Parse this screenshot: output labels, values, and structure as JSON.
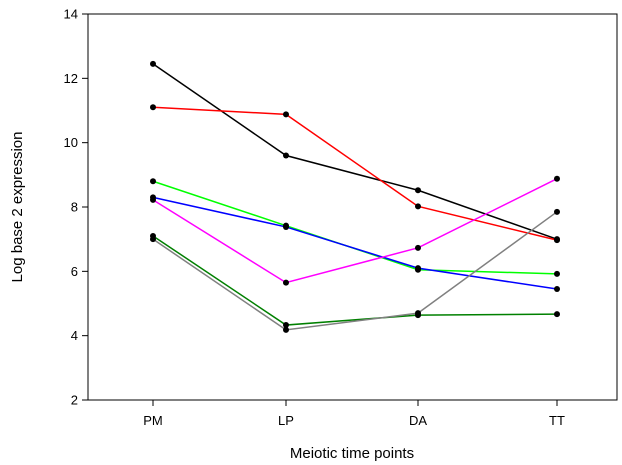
{
  "chart_data": {
    "type": "line",
    "title": "",
    "xlabel": "Meiotic time points",
    "ylabel": "Log base 2 expression",
    "categories": [
      "PM",
      "LP",
      "DA",
      "TT"
    ],
    "ylim": [
      2,
      14
    ],
    "yticks": [
      2,
      4,
      6,
      8,
      10,
      12,
      14
    ],
    "grid": false,
    "legend": "none",
    "marker_color": "#000000",
    "series": [
      {
        "color": "#000000",
        "values": [
          12.45,
          9.6,
          8.52,
          7.0
        ]
      },
      {
        "color": "#ff0000",
        "values": [
          11.1,
          10.88,
          8.02,
          6.97
        ]
      },
      {
        "color": "#00ff00",
        "values": [
          8.8,
          7.42,
          6.05,
          5.92
        ]
      },
      {
        "color": "#0000ff",
        "values": [
          8.3,
          7.38,
          6.1,
          5.45
        ]
      },
      {
        "color": "#ff00ff",
        "values": [
          8.22,
          5.65,
          6.73,
          8.88
        ]
      },
      {
        "color": "#008000",
        "values": [
          7.1,
          4.33,
          4.64,
          4.67
        ]
      },
      {
        "color": "#808080",
        "values": [
          7.0,
          4.18,
          4.7,
          7.85
        ]
      }
    ]
  }
}
